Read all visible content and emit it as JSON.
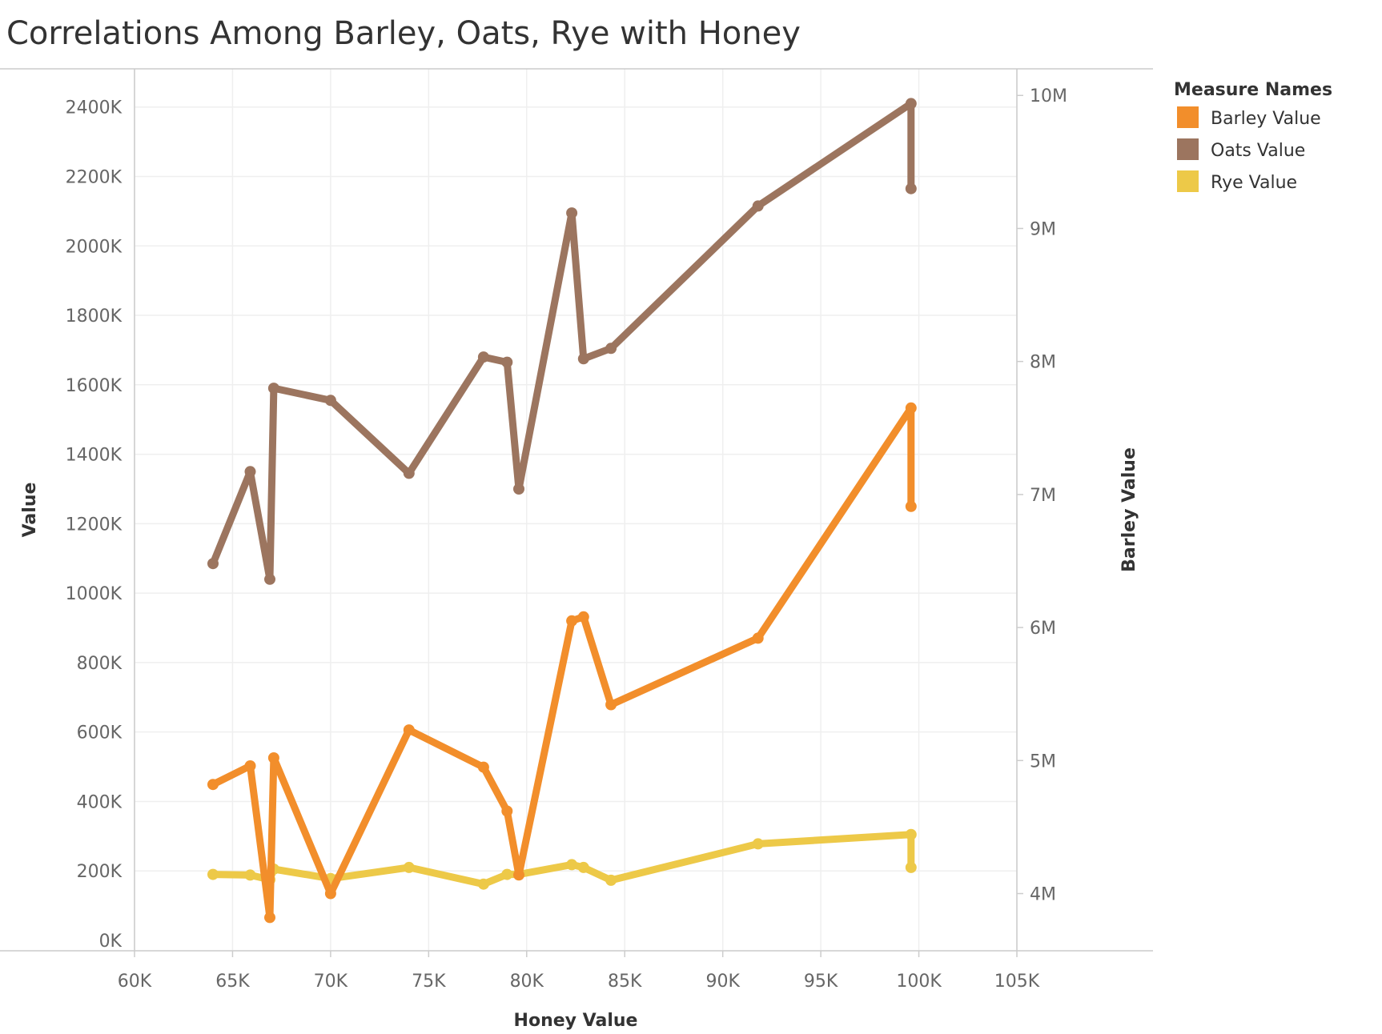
{
  "chart_data": {
    "type": "line",
    "title": "Correlations Among Barley, Oats, Rye with Honey",
    "xlabel": "Honey Value",
    "ylabel": "Value",
    "ylabel_right": "Barley Value",
    "x": [
      64000,
      65900,
      66900,
      67100,
      70000,
      74000,
      77800,
      79000,
      79600,
      82300,
      82900,
      84300,
      91800,
      99600,
      99600
    ],
    "xlim": [
      60000,
      105000
    ],
    "xticks": [
      "60K",
      "65K",
      "70K",
      "75K",
      "80K",
      "85K",
      "90K",
      "95K",
      "100K",
      "105K"
    ],
    "ylim": [
      -30000,
      2510000
    ],
    "yticks": [
      "0K",
      "200K",
      "400K",
      "600K",
      "800K",
      "1000K",
      "1200K",
      "1400K",
      "1600K",
      "1800K",
      "2000K",
      "2200K",
      "2400K"
    ],
    "ylim_right": [
      3570000,
      10200000
    ],
    "yticks_right": [
      "4M",
      "5M",
      "6M",
      "7M",
      "8M",
      "9M",
      "10M"
    ],
    "grid": true,
    "legend_title": "Measure Names",
    "legend_position": "right",
    "series": [
      {
        "name": "Barley Value",
        "axis": "right",
        "color": "#f28e2b",
        "values": [
          4820000,
          4960000,
          3820000,
          5020000,
          4000000,
          5230000,
          4950000,
          4620000,
          4140000,
          6050000,
          6080000,
          5420000,
          5920000,
          7650000,
          6910000
        ]
      },
      {
        "name": "Oats Value",
        "axis": "left",
        "color": "#9c755f",
        "values": [
          1085000,
          1350000,
          1040000,
          1590000,
          1555000,
          1345000,
          1680000,
          1665000,
          1300000,
          2095000,
          1675000,
          1705000,
          2115000,
          2410000,
          2165000
        ]
      },
      {
        "name": "Rye Value",
        "axis": "left",
        "color": "#edc948",
        "values": [
          190000,
          188000,
          175000,
          205000,
          178000,
          210000,
          162000,
          190000,
          190000,
          218000,
          210000,
          173000,
          278000,
          305000,
          210000
        ]
      }
    ]
  }
}
